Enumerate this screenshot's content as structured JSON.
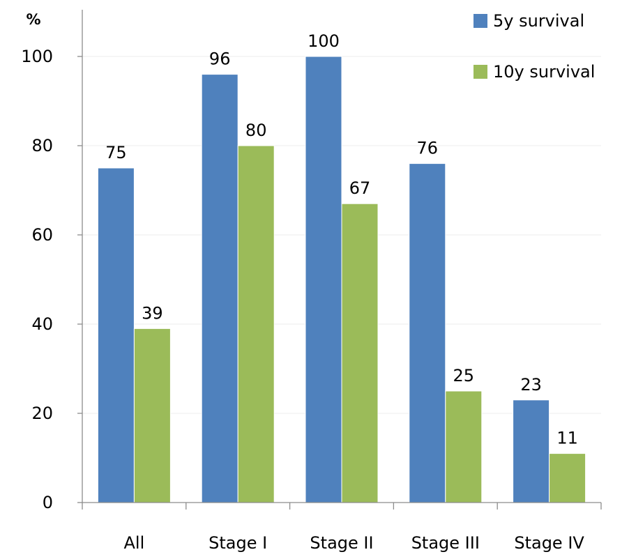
{
  "chart_data": {
    "type": "bar",
    "title": "",
    "xlabel": "",
    "ylabel": "%",
    "categories": [
      "All",
      "Stage I",
      "Stage II",
      "Stage III",
      "Stage IV"
    ],
    "series": [
      {
        "name": "5y survival",
        "values": [
          75,
          96,
          100,
          76,
          23
        ],
        "color": "#4F81BD"
      },
      {
        "name": "10y survival",
        "values": [
          39,
          80,
          67,
          25,
          11
        ],
        "color": "#9BBB59"
      }
    ],
    "ylim": [
      0,
      100
    ],
    "yticks": [
      0,
      20,
      40,
      60,
      80,
      100
    ],
    "grid": true,
    "legend": "top-right",
    "data_labels": true
  }
}
